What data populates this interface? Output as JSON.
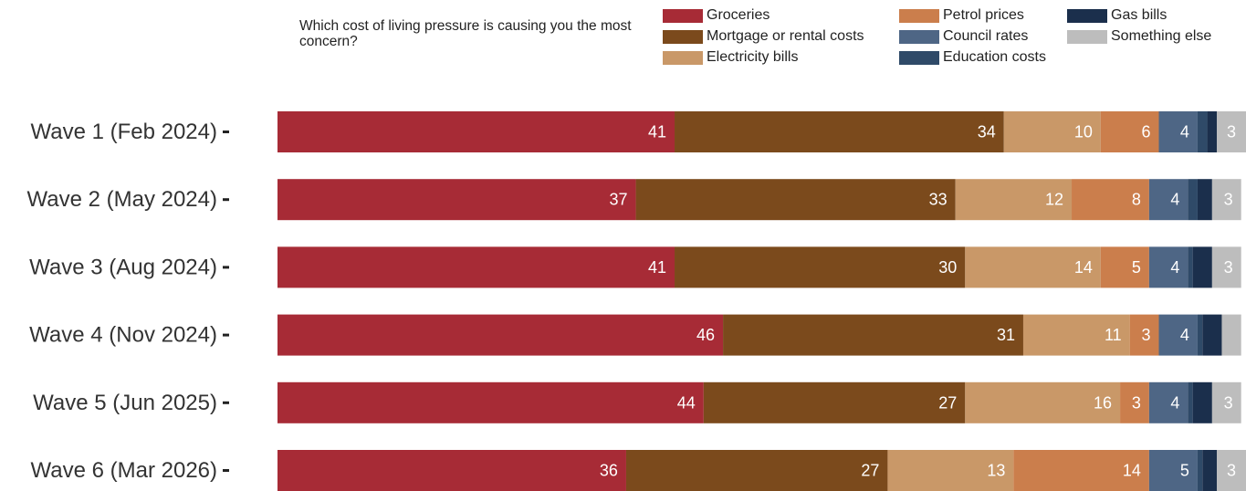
{
  "legend": {
    "title": "Which cost of living pressure is causing you the most concern?"
  },
  "chart_data": {
    "type": "bar",
    "orientation": "horizontal",
    "stacked": true,
    "legend_placement": "top",
    "grid": false,
    "xlim": [
      0,
      100
    ],
    "categories": [
      "Wave 1 (Feb 2024)",
      "Wave 2 (May 2024)",
      "Wave 3 (Aug 2024)",
      "Wave 4 (Nov 2024)",
      "Wave 5 (Jun 2025)",
      "Wave 6 (Mar 2026)"
    ],
    "series": [
      {
        "name": "Groceries",
        "color": "#a72b36",
        "values": [
          41,
          37,
          41,
          46,
          44,
          36
        ],
        "labels": [
          "41",
          "37",
          "41",
          "46",
          "44",
          "36"
        ]
      },
      {
        "name": "Mortgage or rental costs",
        "color": "#7b4a1c",
        "values": [
          34,
          33,
          30,
          31,
          27,
          27
        ],
        "labels": [
          "34",
          "33",
          "30",
          "31",
          "27",
          "27"
        ]
      },
      {
        "name": "Electricity bills",
        "color": "#c99868",
        "values": [
          10,
          12,
          14,
          11,
          16,
          13
        ],
        "labels": [
          "10",
          "12",
          "14",
          "11",
          "16",
          "13"
        ]
      },
      {
        "name": "Petrol prices",
        "color": "#cb7e4c",
        "values": [
          6,
          8,
          5,
          3,
          3,
          14
        ],
        "labels": [
          "6",
          "8",
          "5",
          "3",
          "3",
          "14"
        ]
      },
      {
        "name": "Council rates",
        "color": "#4e6685",
        "values": [
          4,
          4,
          4,
          4,
          4,
          5
        ],
        "labels": [
          "4",
          "4",
          "4",
          "4",
          "4",
          "5"
        ]
      },
      {
        "name": "Education costs",
        "color": "#2f4a68",
        "values": [
          1,
          1,
          0.5,
          0.5,
          0.5,
          0.5
        ],
        "labels": [
          "",
          "",
          "",
          "",
          "",
          ""
        ]
      },
      {
        "name": "Gas bills",
        "color": "#1b2f4c",
        "values": [
          1,
          1.5,
          2,
          2,
          2,
          1.5
        ],
        "labels": [
          "",
          "",
          "",
          "",
          "",
          ""
        ]
      },
      {
        "name": "Something else",
        "color": "#bdbdbd",
        "values": [
          3,
          3,
          3,
          2,
          3,
          3
        ],
        "labels": [
          "3",
          "3",
          "3",
          "",
          "3",
          "3"
        ]
      }
    ]
  }
}
